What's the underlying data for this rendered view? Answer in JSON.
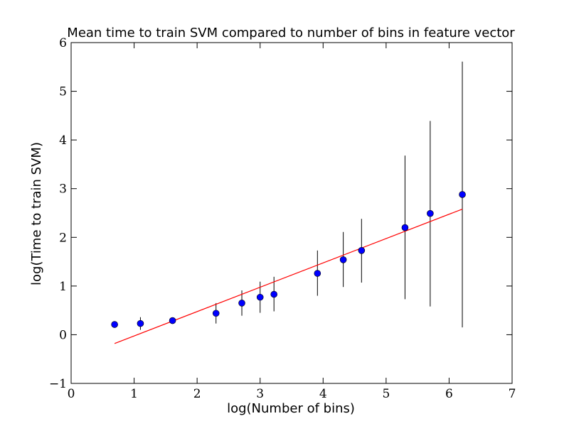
{
  "chart_data": {
    "type": "scatter",
    "title": "Mean time to train SVM compared to number of bins in feature vector",
    "xlabel": "log(Number of bins)",
    "ylabel": "log(Time to train SVM)",
    "xlim": [
      0,
      7
    ],
    "ylim": [
      -1,
      6
    ],
    "xticks": [
      "0",
      "1",
      "2",
      "3",
      "4",
      "5",
      "6",
      "7"
    ],
    "yticks": [
      "−1",
      "0",
      "1",
      "2",
      "3",
      "4",
      "5",
      "6"
    ],
    "grid": false,
    "series": [
      {
        "type": "scatter_errorbar",
        "color": "#0000ff",
        "errorbar_color": "#000000",
        "points": [
          {
            "x": 0.69,
            "y": 0.21,
            "ylow": 0.21,
            "yhigh": 0.21
          },
          {
            "x": 1.1,
            "y": 0.23,
            "ylow": 0.1,
            "yhigh": 0.36
          },
          {
            "x": 1.61,
            "y": 0.29,
            "ylow": 0.25,
            "yhigh": 0.33
          },
          {
            "x": 2.3,
            "y": 0.44,
            "ylow": 0.23,
            "yhigh": 0.65
          },
          {
            "x": 2.71,
            "y": 0.65,
            "ylow": 0.39,
            "yhigh": 0.91
          },
          {
            "x": 3.0,
            "y": 0.77,
            "ylow": 0.45,
            "yhigh": 1.09
          },
          {
            "x": 3.22,
            "y": 0.83,
            "ylow": 0.48,
            "yhigh": 1.19
          },
          {
            "x": 3.91,
            "y": 1.26,
            "ylow": 0.8,
            "yhigh": 1.73
          },
          {
            "x": 4.32,
            "y": 1.54,
            "ylow": 0.98,
            "yhigh": 2.11
          },
          {
            "x": 4.61,
            "y": 1.73,
            "ylow": 1.07,
            "yhigh": 2.38
          },
          {
            "x": 5.3,
            "y": 2.2,
            "ylow": 0.73,
            "yhigh": 3.68
          },
          {
            "x": 5.7,
            "y": 2.49,
            "ylow": 0.58,
            "yhigh": 4.39
          },
          {
            "x": 6.21,
            "y": 2.88,
            "ylow": 0.15,
            "yhigh": 5.61
          }
        ]
      },
      {
        "type": "line",
        "color": "#ff0000",
        "x": [
          0.69,
          6.21
        ],
        "y": [
          -0.18,
          2.58
        ]
      }
    ]
  }
}
